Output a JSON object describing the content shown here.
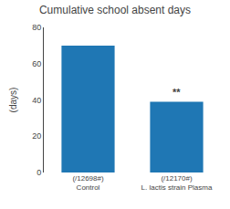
{
  "chart_data": {
    "type": "bar",
    "title": "Cumulative school absent days",
    "ylabel": "(days)",
    "categories": [
      "Control",
      "L. lactis strain Plasma"
    ],
    "sublabels": [
      "(/12698#)",
      "(/12170#)"
    ],
    "values": [
      70,
      39
    ],
    "ylim": [
      0,
      80
    ],
    "yticks": [
      0,
      20,
      40,
      60,
      80
    ],
    "grid": false,
    "annotations": [
      {
        "text": "**",
        "category": "L. lactis strain Plasma"
      }
    ]
  }
}
